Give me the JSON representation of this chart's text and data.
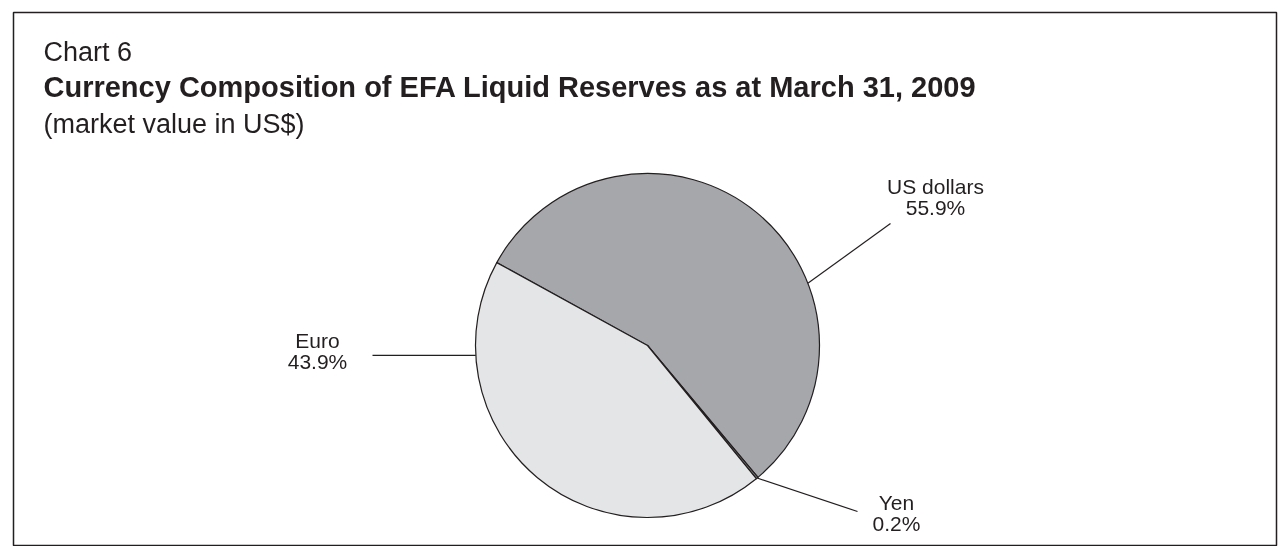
{
  "chart_data": {
    "type": "pie",
    "title": "Currency Composition of EFA Liquid Reserves as at March 31, 2009",
    "subtitle": "(market value in US$)",
    "annotations": [
      "Chart 6"
    ],
    "categories": [
      "US dollars",
      "Yen",
      "Euro"
    ],
    "values": [
      55.9,
      0.2,
      43.9
    ],
    "value_labels": [
      "55.9%",
      "0.2%",
      "43.9%"
    ],
    "colors": [
      "#a6a7aa",
      "#7e7f82",
      "#e4e5e6"
    ]
  }
}
